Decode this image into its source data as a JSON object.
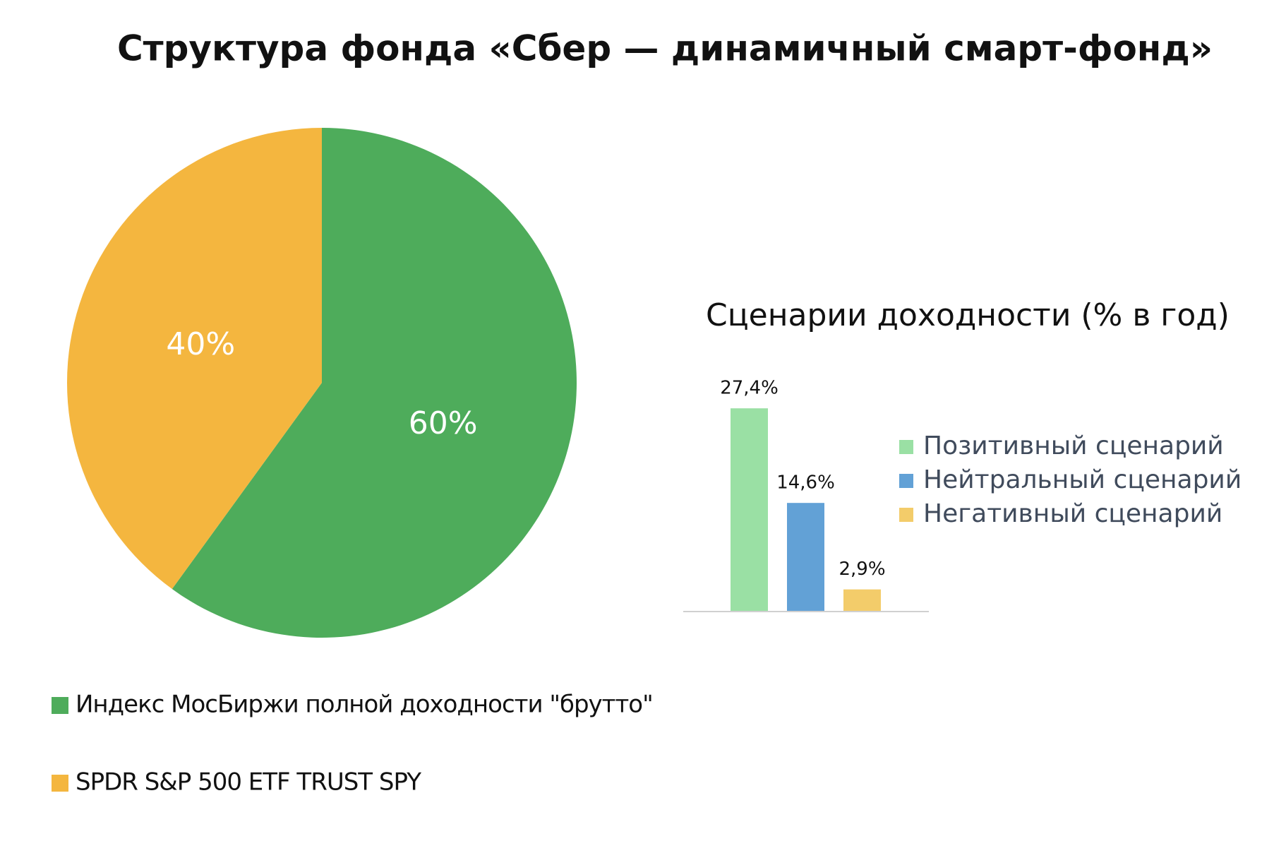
{
  "chart_data": [
    {
      "type": "pie",
      "title": "Структура фонда «Сбер — динамичный смарт-фонд»",
      "categories": [
        "Индекс МосБиржи полной доходности \"брутто\"",
        "SPDR S&P 500 ETF TRUST SPY"
      ],
      "values": [
        60,
        40
      ],
      "value_labels": [
        "60%",
        "40%"
      ],
      "colors": [
        "#4eac5b",
        "#f4b63f"
      ]
    },
    {
      "type": "bar",
      "title": "Сценарии доходности (% в год)",
      "ylim": [
        0,
        30
      ],
      "series": [
        {
          "name": "Позитивный сценарий",
          "color": "#9ae0a4",
          "values": [
            27.4
          ],
          "value_labels": [
            "27,4%"
          ]
        },
        {
          "name": "Нейтральный сценарий",
          "color": "#62a1d6",
          "values": [
            14.6
          ],
          "value_labels": [
            "14,6%"
          ]
        },
        {
          "name": "Негативный сценарий",
          "color": "#f3cc6a",
          "values": [
            2.9
          ],
          "value_labels": [
            "2,9%"
          ]
        }
      ]
    }
  ]
}
